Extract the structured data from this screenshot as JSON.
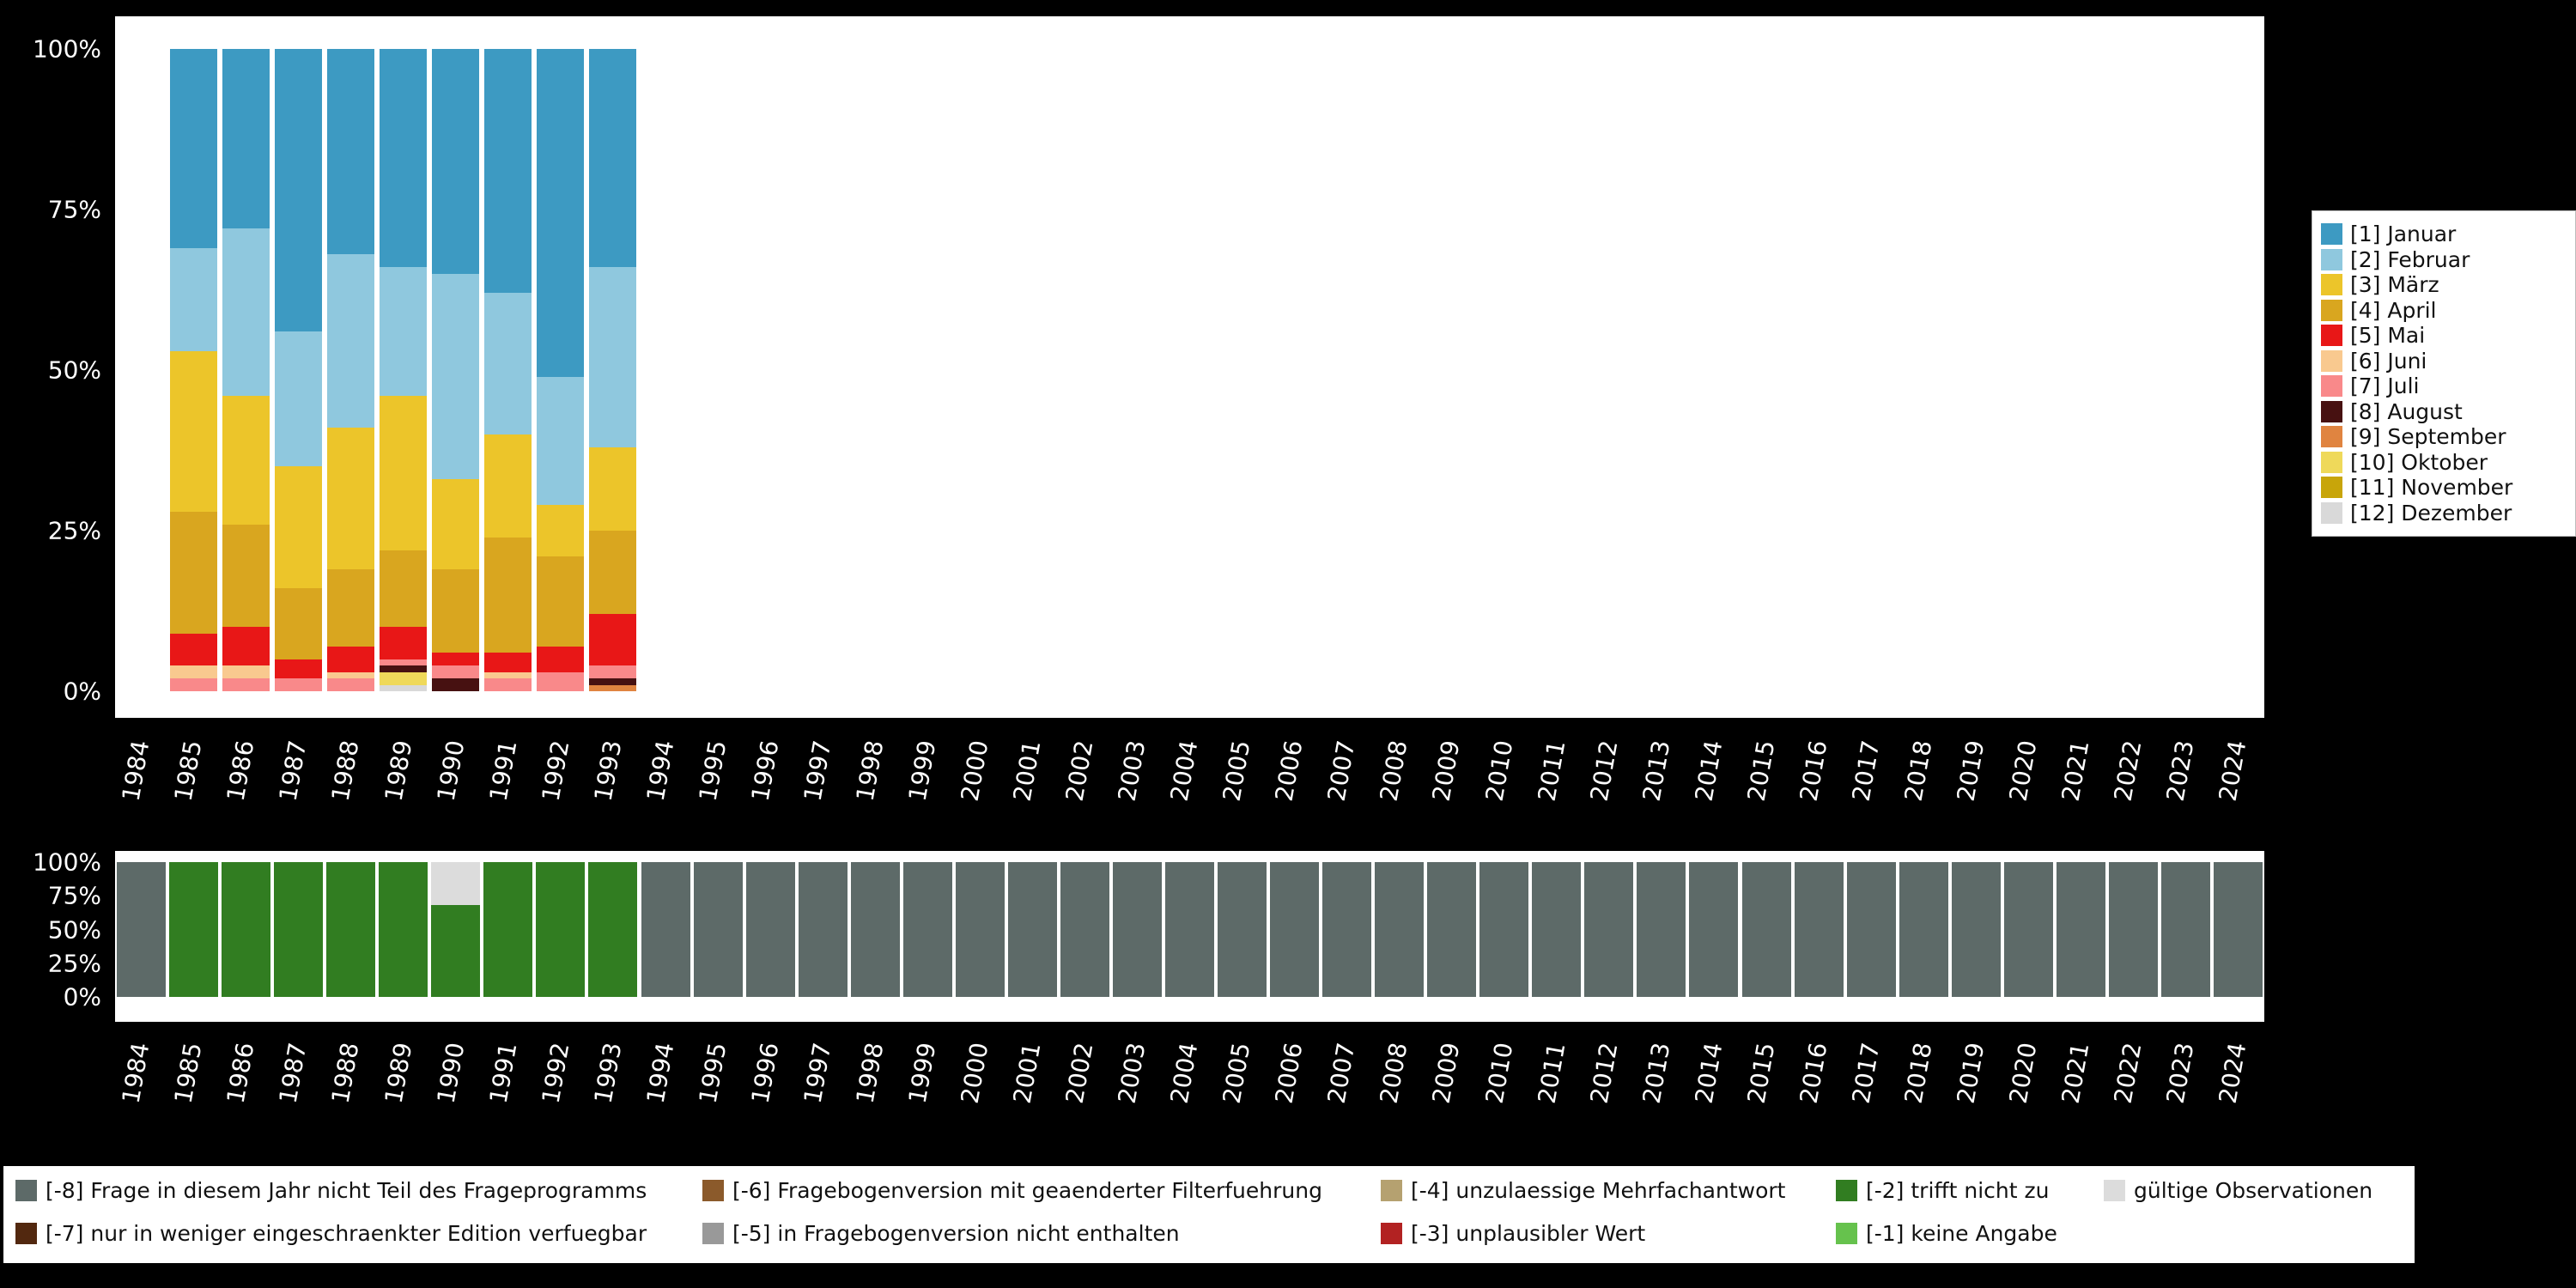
{
  "colors": {
    "background": "#000000",
    "panel_background": "#ffffff",
    "axis_text": "#ffffff"
  },
  "chart_data": [
    {
      "name": "month-distribution",
      "type": "bar",
      "stacking": "percent",
      "title": "",
      "xlabel": "",
      "ylabel": "",
      "ylim": [
        0,
        100
      ],
      "legend_position": "right",
      "x_categories": [
        "1984",
        "1985",
        "1986",
        "1987",
        "1988",
        "1989",
        "1990",
        "1991",
        "1992",
        "1993",
        "1994",
        "1995",
        "1996",
        "1997",
        "1998",
        "1999",
        "2000",
        "2001",
        "2002",
        "2003",
        "2004",
        "2005",
        "2006",
        "2007",
        "2008",
        "2009",
        "2010",
        "2011",
        "2012",
        "2013",
        "2014",
        "2015",
        "2016",
        "2017",
        "2018",
        "2019",
        "2020",
        "2021",
        "2022",
        "2023",
        "2024"
      ],
      "y_ticks": [
        {
          "label": "100%",
          "value": 100
        },
        {
          "label": "75%",
          "value": 75
        },
        {
          "label": "50%",
          "value": 50
        },
        {
          "label": "25%",
          "value": 25
        },
        {
          "label": "0%",
          "value": 0
        }
      ],
      "series": [
        {
          "key": "1",
          "label": "[1] Januar",
          "color": "#3d9ac2"
        },
        {
          "key": "2",
          "label": "[2] Februar",
          "color": "#8fc8de"
        },
        {
          "key": "3",
          "label": "[3] März",
          "color": "#ecc52a"
        },
        {
          "key": "4",
          "label": "[4] April",
          "color": "#d9a61f"
        },
        {
          "key": "5",
          "label": "[5] Mai",
          "color": "#e81717"
        },
        {
          "key": "6",
          "label": "[6] Juni",
          "color": "#f9c98f"
        },
        {
          "key": "7",
          "label": "[7] Juli",
          "color": "#f9898a"
        },
        {
          "key": "8",
          "label": "[8] August",
          "color": "#471111"
        },
        {
          "key": "9",
          "label": "[9] September",
          "color": "#e08440"
        },
        {
          "key": "10",
          "label": "[10] Oktober",
          "color": "#efd95a"
        },
        {
          "key": "11",
          "label": "[11] November",
          "color": "#c8a50a"
        },
        {
          "key": "12",
          "label": "[12] Dezember",
          "color": "#d9d9d9"
        }
      ],
      "stack_order_bottom_to_top": [
        "12",
        "11",
        "10",
        "9",
        "8",
        "7",
        "6",
        "5",
        "4",
        "3",
        "2",
        "1"
      ],
      "values_percent_by_year": {
        "1985": {
          "1": 31,
          "2": 16,
          "3": 25,
          "4": 19,
          "5": 5,
          "6": 2,
          "7": 2
        },
        "1986": {
          "1": 28,
          "2": 26,
          "3": 20,
          "4": 16,
          "5": 6,
          "6": 2,
          "7": 2
        },
        "1987": {
          "1": 44,
          "2": 21,
          "3": 19,
          "4": 11,
          "5": 3,
          "7": 2
        },
        "1988": {
          "1": 32,
          "2": 27,
          "3": 22,
          "4": 12,
          "5": 4,
          "6": 1,
          "7": 2
        },
        "1989": {
          "1": 34,
          "2": 20,
          "3": 24,
          "4": 12,
          "5": 5,
          "7": 1,
          "8": 1,
          "10": 2,
          "12": 1
        },
        "1990": {
          "1": 35,
          "2": 32,
          "3": 14,
          "4": 13,
          "5": 2,
          "7": 2,
          "8": 2
        },
        "1991": {
          "1": 38,
          "2": 22,
          "3": 16,
          "4": 18,
          "5": 3,
          "6": 1,
          "7": 2
        },
        "1992": {
          "1": 51,
          "2": 20,
          "3": 8,
          "4": 14,
          "5": 4,
          "7": 3
        },
        "1993": {
          "1": 34,
          "2": 28,
          "3": 13,
          "4": 13,
          "5": 8,
          "7": 2,
          "8": 1,
          "9": 1
        }
      }
    },
    {
      "name": "missing-values",
      "type": "bar",
      "stacking": "percent",
      "title": "",
      "xlabel": "",
      "ylabel": "",
      "ylim": [
        0,
        100
      ],
      "legend_position": "bottom",
      "x_categories": [
        "1984",
        "1985",
        "1986",
        "1987",
        "1988",
        "1989",
        "1990",
        "1991",
        "1992",
        "1993",
        "1994",
        "1995",
        "1996",
        "1997",
        "1998",
        "1999",
        "2000",
        "2001",
        "2002",
        "2003",
        "2004",
        "2005",
        "2006",
        "2007",
        "2008",
        "2009",
        "2010",
        "2011",
        "2012",
        "2013",
        "2014",
        "2015",
        "2016",
        "2017",
        "2018",
        "2019",
        "2020",
        "2021",
        "2022",
        "2023",
        "2024"
      ],
      "y_ticks": [
        {
          "label": "100%",
          "value": 100
        },
        {
          "label": "75%",
          "value": 75
        },
        {
          "label": "50%",
          "value": 50
        },
        {
          "label": "25%",
          "value": 25
        },
        {
          "label": "0%",
          "value": 0
        }
      ],
      "series": [
        {
          "key": "-8",
          "label": "[-8] Frage in diesem Jahr nicht Teil des Frageprogramms",
          "color": "#5d6a68"
        },
        {
          "key": "-7",
          "label": "[-7] nur in weniger eingeschraenkter Edition verfuegbar",
          "color": "#52280f"
        },
        {
          "key": "-6",
          "label": "[-6] Fragebogenversion mit geaenderter Filterfuehrung",
          "color": "#8b5a2b"
        },
        {
          "key": "-5",
          "label": "[-5] in Fragebogenversion nicht enthalten",
          "color": "#999999"
        },
        {
          "key": "-4",
          "label": "[-4] unzulaessige Mehrfachantwort",
          "color": "#b5a170"
        },
        {
          "key": "-3",
          "label": "[-3] unplausibler Wert",
          "color": "#b22222"
        },
        {
          "key": "-2",
          "label": "[-2] trifft nicht zu",
          "color": "#317d21"
        },
        {
          "key": "-1",
          "label": "[-1] keine Angabe",
          "color": "#66c24d"
        },
        {
          "key": "valid",
          "label": "gültige Observationen",
          "color": "#dcdcdc"
        }
      ],
      "stack_order_bottom_to_top": [
        "-8",
        "-7",
        "-6",
        "-5",
        "-4",
        "-3",
        "-2",
        "-1",
        "valid"
      ],
      "values_percent_by_year": {
        "1984": {
          "-8": 100
        },
        "1985": {
          "-2": 100
        },
        "1986": {
          "-2": 100
        },
        "1987": {
          "-2": 100
        },
        "1988": {
          "-2": 100
        },
        "1989": {
          "-2": 100
        },
        "1990": {
          "-2": 68,
          "valid": 32
        },
        "1991": {
          "-2": 100
        },
        "1992": {
          "-2": 100
        },
        "1993": {
          "-2": 100
        },
        "1994": {
          "-8": 100
        },
        "1995": {
          "-8": 100
        },
        "1996": {
          "-8": 100
        },
        "1997": {
          "-8": 100
        },
        "1998": {
          "-8": 100
        },
        "1999": {
          "-8": 100
        },
        "2000": {
          "-8": 100
        },
        "2001": {
          "-8": 100
        },
        "2002": {
          "-8": 100
        },
        "2003": {
          "-8": 100
        },
        "2004": {
          "-8": 100
        },
        "2005": {
          "-8": 100
        },
        "2006": {
          "-8": 100
        },
        "2007": {
          "-8": 100
        },
        "2008": {
          "-8": 100
        },
        "2009": {
          "-8": 100
        },
        "2010": {
          "-8": 100
        },
        "2011": {
          "-8": 100
        },
        "2012": {
          "-8": 100
        },
        "2013": {
          "-8": 100
        },
        "2014": {
          "-8": 100
        },
        "2015": {
          "-8": 100
        },
        "2016": {
          "-8": 100
        },
        "2017": {
          "-8": 100
        },
        "2018": {
          "-8": 100
        },
        "2019": {
          "-8": 100
        },
        "2020": {
          "-8": 100
        },
        "2021": {
          "-8": 100
        },
        "2022": {
          "-8": 100
        },
        "2023": {
          "-8": 100
        },
        "2024": {
          "-8": 100
        }
      }
    }
  ]
}
